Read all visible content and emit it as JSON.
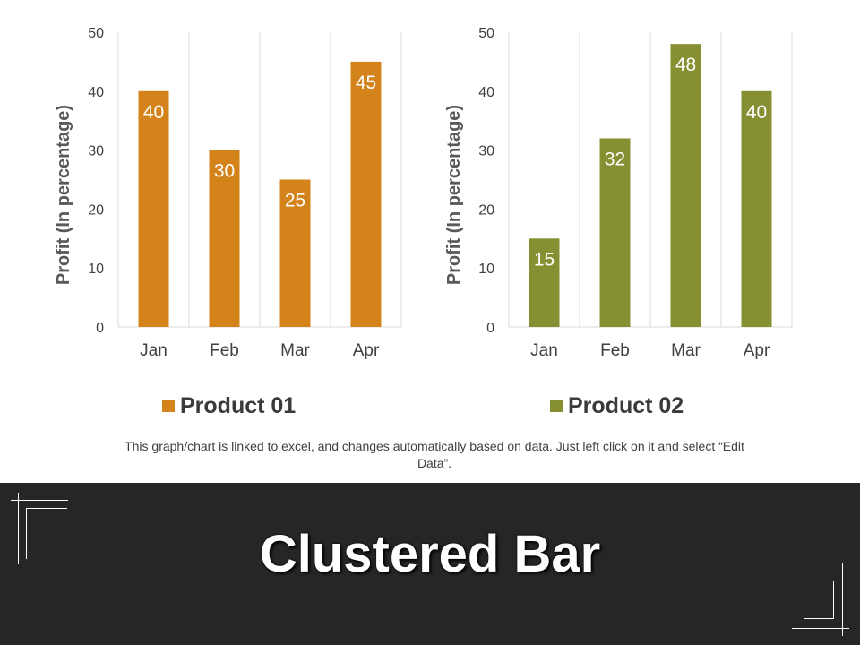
{
  "chart_data": [
    {
      "type": "bar",
      "categories": [
        "Jan",
        "Feb",
        "Mar",
        "Apr"
      ],
      "series": [
        {
          "name": "Product 01",
          "values": [
            40,
            30,
            25,
            45
          ]
        }
      ],
      "ylabel": "Profit  (In percentage)",
      "ylim": [
        0,
        50
      ],
      "yticks": [
        "0",
        "10",
        "20",
        "30",
        "40",
        "50"
      ],
      "grid": "vertical",
      "legend": "bottom",
      "color": "#d4831a"
    },
    {
      "type": "bar",
      "categories": [
        "Jan",
        "Feb",
        "Mar",
        "Apr"
      ],
      "series": [
        {
          "name": "Product 02",
          "values": [
            15,
            32,
            48,
            40
          ]
        }
      ],
      "ylabel": "Profit  (In percentage)",
      "ylim": [
        0,
        50
      ],
      "yticks": [
        "0",
        "10",
        "20",
        "30",
        "40",
        "50"
      ],
      "grid": "vertical",
      "legend": "bottom",
      "color": "#869032"
    }
  ],
  "legend": {
    "left_label": "Product 01",
    "right_label": "Product 02"
  },
  "note": "This graph/chart is linked to excel, and changes automatically based on data. Just left click on it and select “Edit Data”.",
  "footer": {
    "title": "Clustered Bar"
  },
  "colors": {
    "product_01": "#d4831a",
    "product_02": "#869032",
    "footer_bg": "#262626"
  }
}
